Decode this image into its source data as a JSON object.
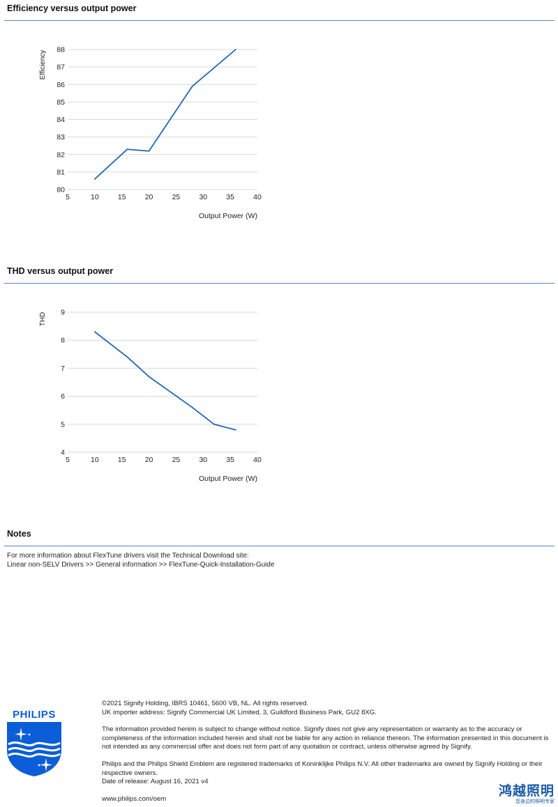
{
  "sections": {
    "efficiency_title": "Efficiency versus output power",
    "thd_title": "THD versus output power",
    "notes_title": "Notes"
  },
  "chart_data": [
    {
      "type": "line",
      "ylabel": "Efficiency",
      "xlabel": "Output Power (W)",
      "xlim": [
        5,
        40
      ],
      "ylim": [
        80,
        88
      ],
      "xticks": [
        "5",
        "10",
        "15",
        "20",
        "25",
        "30",
        "35",
        "40"
      ],
      "yticks": [
        "80",
        "81",
        "82",
        "83",
        "84",
        "85",
        "86",
        "87",
        "88"
      ],
      "grid": true,
      "series": [
        {
          "x": [
            10,
            16,
            20,
            28,
            36
          ],
          "y": [
            80.6,
            82.3,
            82.2,
            85.9,
            88.0
          ]
        }
      ],
      "line_color": "#1f67b5"
    },
    {
      "type": "line",
      "ylabel": "THD",
      "xlabel": "Output Power (W)",
      "xlim": [
        5,
        40
      ],
      "ylim": [
        4,
        9
      ],
      "xticks": [
        "5",
        "10",
        "15",
        "20",
        "25",
        "30",
        "35",
        "40"
      ],
      "yticks": [
        "4",
        "5",
        "6",
        "7",
        "8",
        "9"
      ],
      "grid": true,
      "series": [
        {
          "x": [
            10,
            16,
            20,
            28,
            32,
            36
          ],
          "y": [
            8.3,
            7.4,
            6.7,
            5.6,
            5.0,
            4.8
          ]
        }
      ],
      "line_color": "#1f67b5"
    }
  ],
  "notes": {
    "line1": "For more information about FlexTune drivers visit the Technical Download site:",
    "line2": "Linear non-SELV Drivers >> General information >> FlexTune-Quick-Installation-Guide"
  },
  "footer": {
    "copyright": "©2021 Signify Holding, IBRS 10461, 5600 VB, NL. All rights reserved.",
    "importer": "UK importer address: Signify Commercial UK Limited, 3, Guildford Business Park, GU2 8XG.",
    "disclaimer": "The information provided herein is subject to change without notice. Signify does not give any representation or warranty as to the accuracy or completeness of the information included herein and shall not be liable for any action in reliance thereon. The information presented in this document is not intended as any commercial offer and does not form part of any quotation or contract, unless otherwise agreed by Signify.",
    "trademarks": "Philips and the Philips Shield Emblem are registered trademarks of Koninklijke Philips N.V. All other trademarks are owned by Signify Holding or their respective owners.",
    "release_date": "Date of release: August 16, 2021 v4",
    "website": "www.philips.com/oem"
  },
  "logo": {
    "brand": "PHILIPS",
    "icon": "philips-shield-icon",
    "color": "#0b5ed7"
  },
  "dealer_logo": {
    "main": "鸿越照明",
    "sub": "您身边的照明专家"
  }
}
